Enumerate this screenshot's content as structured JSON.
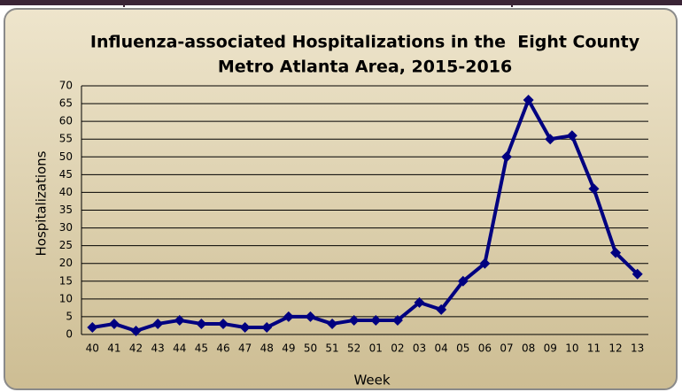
{
  "chart_data": {
    "type": "line",
    "title_lines": [
      "Influenza-associated Hospitalizations in the  Eight County",
      "Metro Atlanta Area, 2015-2016"
    ],
    "y_label": "Hospitalizations",
    "x_label": "Week",
    "categories": [
      "40",
      "41",
      "42",
      "43",
      "44",
      "45",
      "46",
      "47",
      "48",
      "49",
      "50",
      "51",
      "52",
      "01",
      "02",
      "03",
      "04",
      "05",
      "06",
      "07",
      "08",
      "09",
      "10",
      "11",
      "12",
      "13"
    ],
    "series": [
      {
        "name": "Hospitalizations",
        "color": "#000080",
        "values": [
          2,
          3,
          1,
          3,
          4,
          3,
          3,
          2,
          2,
          5,
          5,
          3,
          4,
          4,
          4,
          9,
          7,
          15,
          20,
          50,
          66,
          55,
          56,
          41,
          23,
          17
        ]
      }
    ],
    "ylim": [
      0,
      70
    ],
    "yticks": [
      0,
      5,
      10,
      15,
      20,
      25,
      30,
      35,
      40,
      45,
      50,
      55,
      60,
      65,
      70
    ],
    "grid": true
  }
}
